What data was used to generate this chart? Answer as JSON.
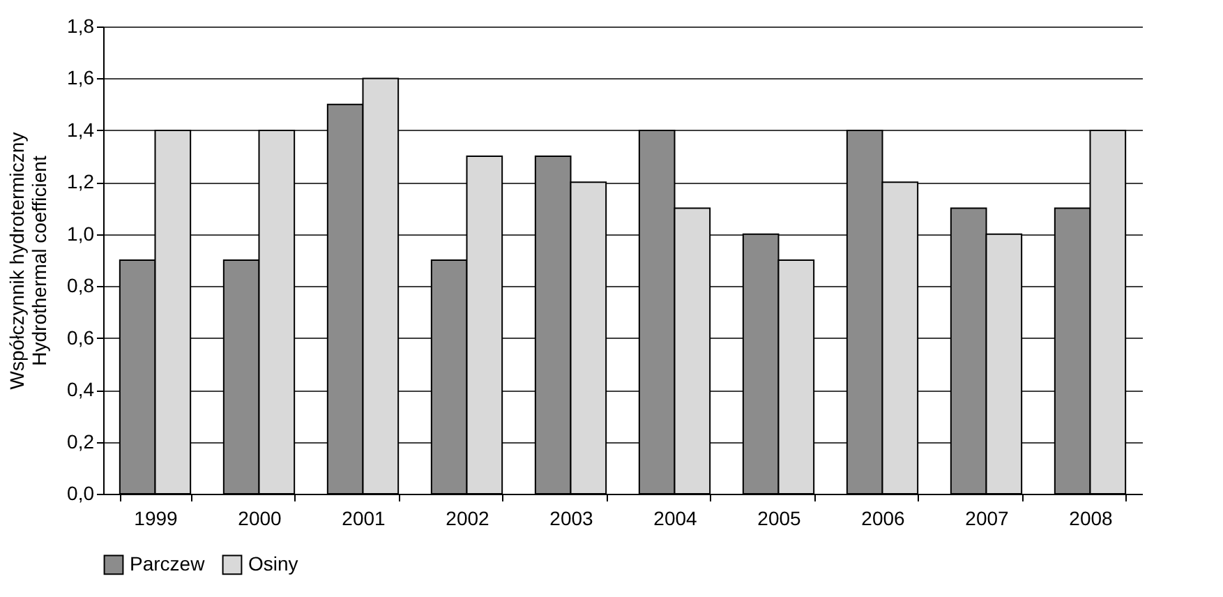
{
  "chart_data": {
    "type": "bar",
    "ylabel": "Współczynnik hydrotermiczny\nHydrothermal coefficient",
    "categories": [
      "1999",
      "2000",
      "2001",
      "2002",
      "2003",
      "2004",
      "2005",
      "2006",
      "2007",
      "2008"
    ],
    "series": [
      {
        "name": "Parczew",
        "color": "#8c8c8c",
        "values": [
          0.9,
          0.9,
          1.5,
          0.9,
          1.3,
          1.4,
          1.0,
          1.4,
          1.1,
          1.1
        ]
      },
      {
        "name": "Osiny",
        "color": "#d9d9d9",
        "values": [
          1.4,
          1.4,
          1.6,
          1.3,
          1.2,
          1.1,
          0.9,
          1.2,
          1.0,
          1.4
        ]
      }
    ],
    "ylim": [
      0,
      1.8
    ],
    "yticks": [
      {
        "value": 0,
        "label": "0,0"
      },
      {
        "value": 0.2,
        "label": "0,2"
      },
      {
        "value": 0.4,
        "label": "0,4"
      },
      {
        "value": 0.6,
        "label": "0,6"
      },
      {
        "value": 0.8,
        "label": "0,8"
      },
      {
        "value": 1.0,
        "label": "1,0"
      },
      {
        "value": 1.2,
        "label": "1,2"
      },
      {
        "value": 1.4,
        "label": "1,4"
      },
      {
        "value": 1.6,
        "label": "1,6"
      },
      {
        "value": 1.8,
        "label": "1,8"
      }
    ],
    "grid": "y",
    "legend": "bottom"
  }
}
